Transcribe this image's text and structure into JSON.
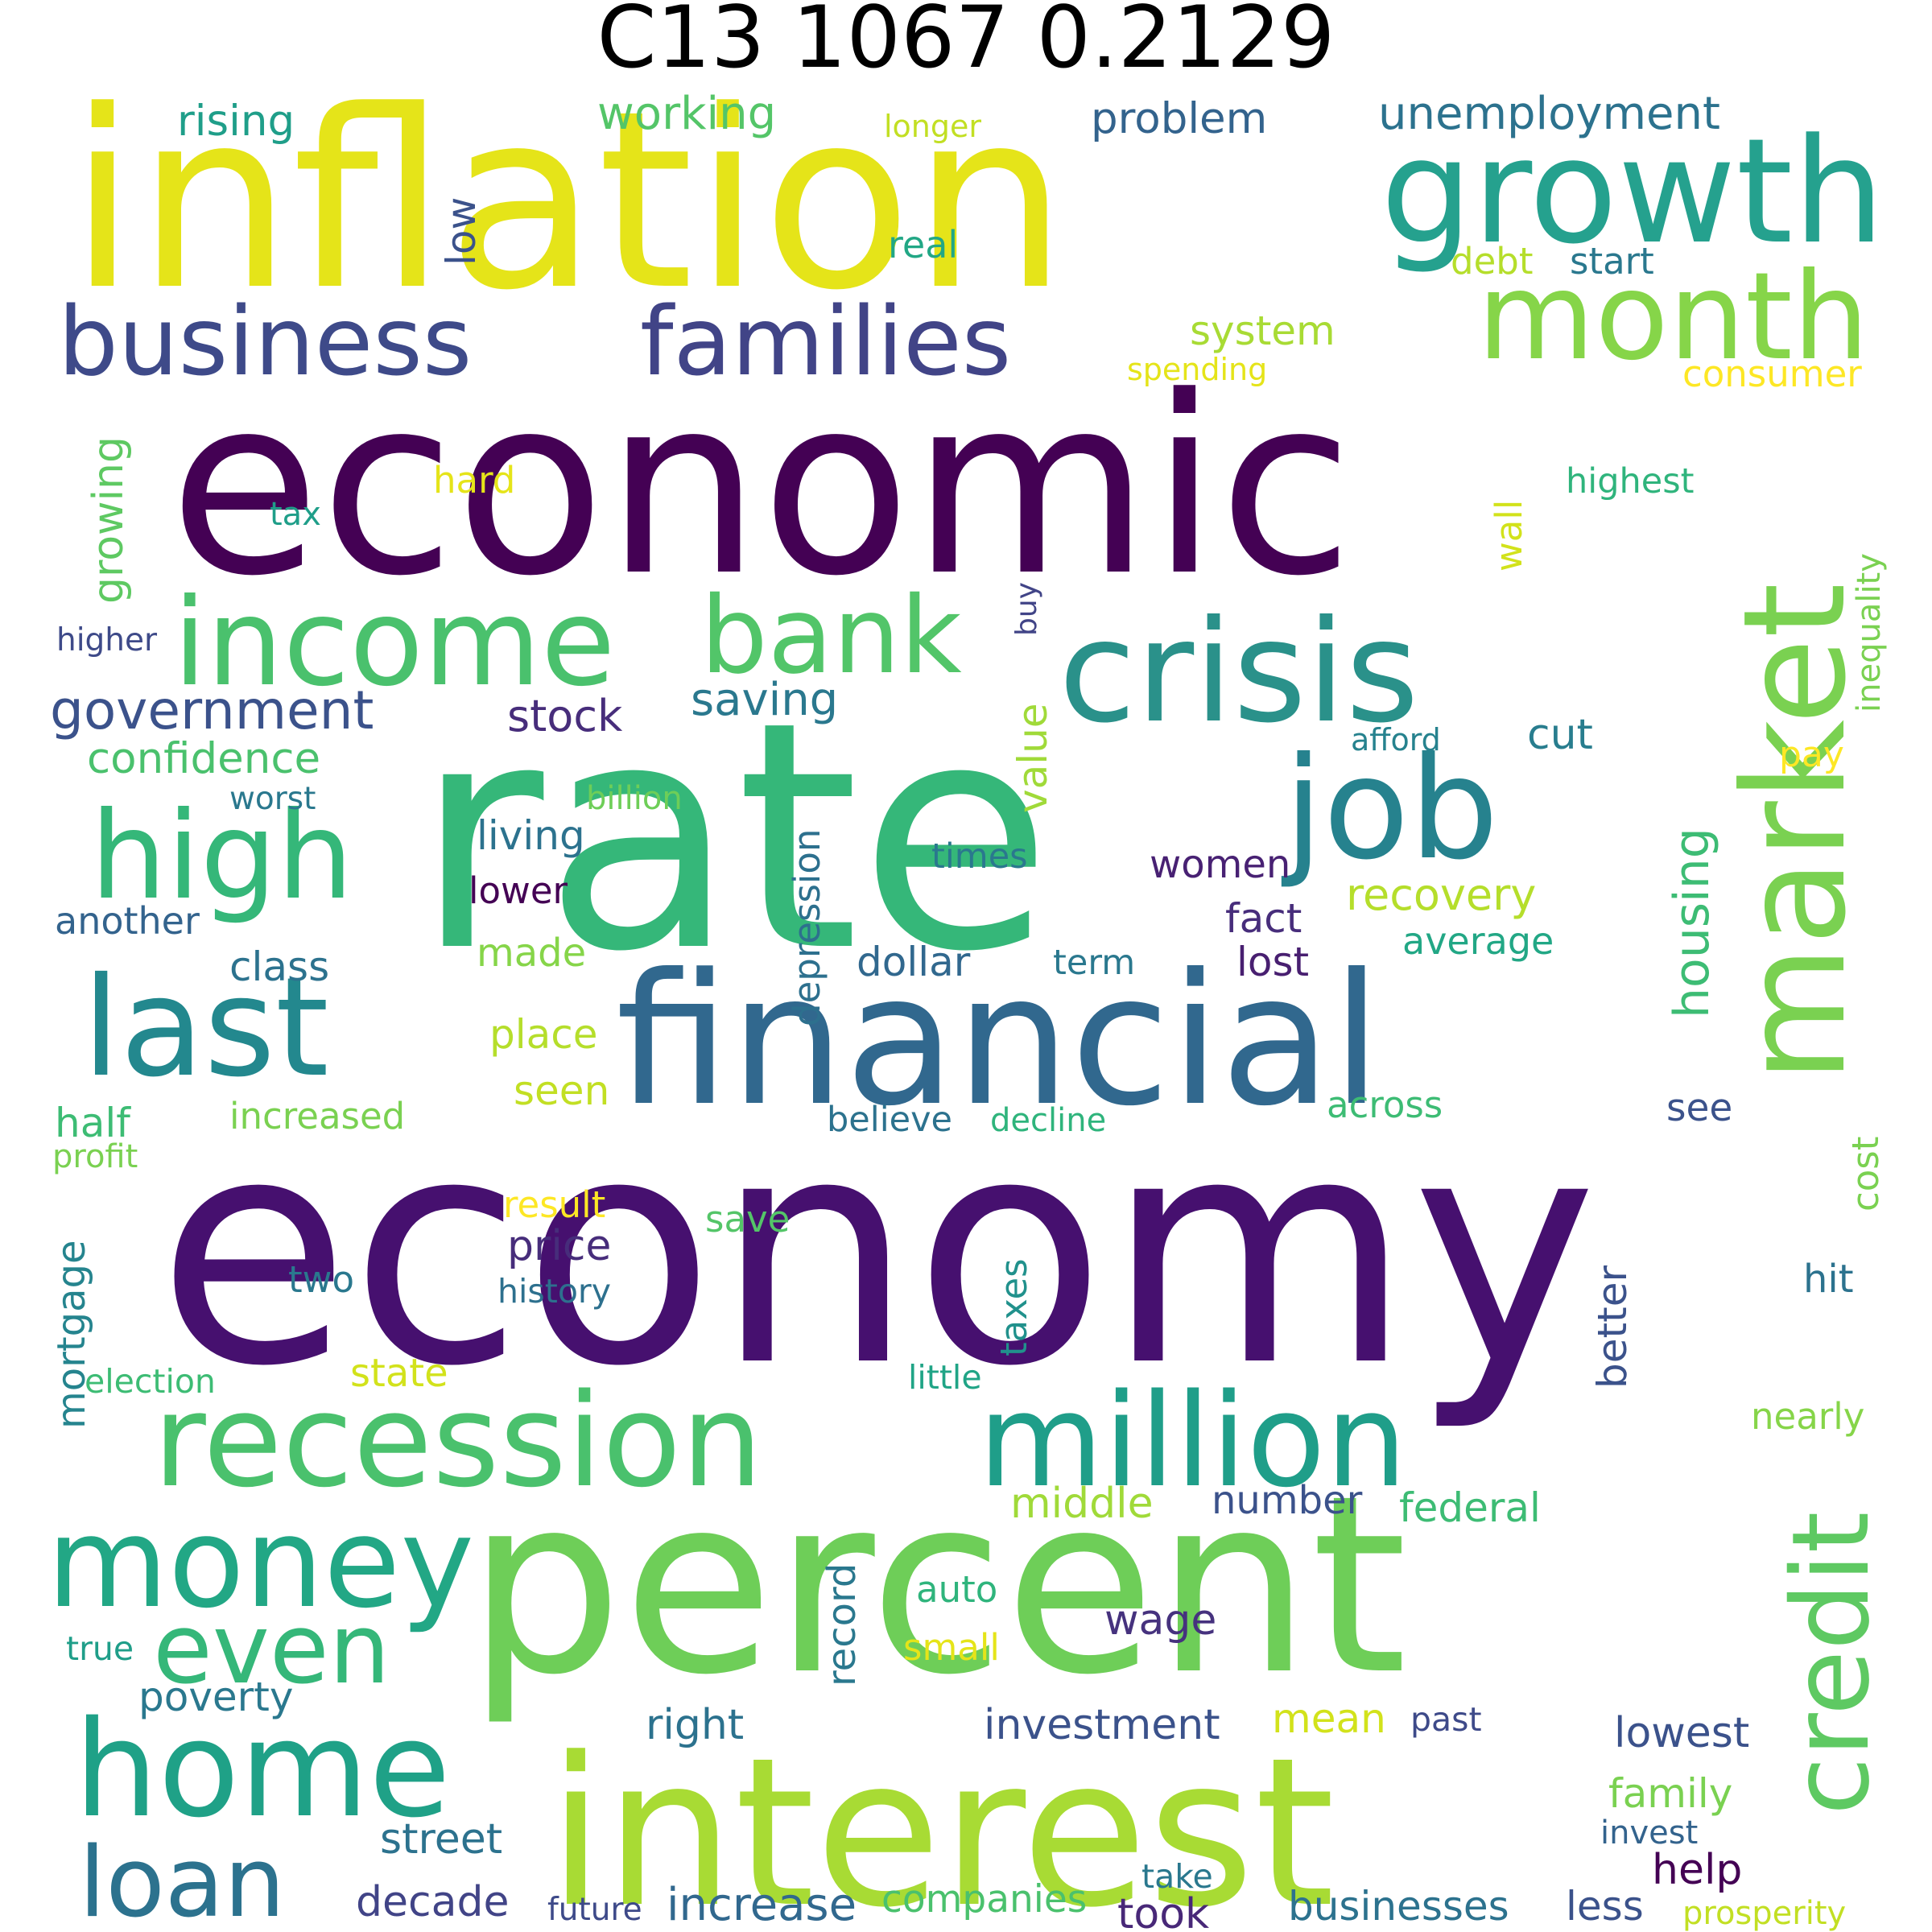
{
  "title": "C13 1067 0.2129",
  "palette": {
    "dark_purple": "#440154",
    "indigo": "#46327e",
    "blue": "#365c8d",
    "teal_blue": "#277f8e",
    "teal": "#1fa187",
    "green": "#4ac16d",
    "light_green": "#a0da39",
    "yellow": "#fde725"
  },
  "words": [
    {
      "text": "inflation",
      "color": "#e5e419"
    },
    {
      "text": "economic",
      "color": "#440154"
    },
    {
      "text": "rate",
      "color": "#35b779"
    },
    {
      "text": "economy",
      "color": "#46106f"
    },
    {
      "text": "percent",
      "color": "#6ece58"
    },
    {
      "text": "interest",
      "color": "#a8db34"
    },
    {
      "text": "financial",
      "color": "#31688e"
    },
    {
      "text": "growth",
      "color": "#25a18e"
    },
    {
      "text": "market",
      "color": "#7ad151"
    },
    {
      "text": "crisis",
      "color": "#2a918a"
    },
    {
      "text": "month",
      "color": "#86d549"
    },
    {
      "text": "business",
      "color": "#3e4a89"
    },
    {
      "text": "families",
      "color": "#414487"
    },
    {
      "text": "income",
      "color": "#4ac16d"
    },
    {
      "text": "bank",
      "color": "#52c569"
    },
    {
      "text": "job",
      "color": "#26828e"
    },
    {
      "text": "high",
      "color": "#35b779"
    },
    {
      "text": "last",
      "color": "#23888e"
    },
    {
      "text": "recession",
      "color": "#4ac16d"
    },
    {
      "text": "million",
      "color": "#1f9e89"
    },
    {
      "text": "money",
      "color": "#22a785"
    },
    {
      "text": "credit",
      "color": "#5ec962"
    },
    {
      "text": "home",
      "color": "#1fa187"
    },
    {
      "text": "even",
      "color": "#35b779"
    },
    {
      "text": "loan",
      "color": "#2c728e"
    },
    {
      "text": "government",
      "color": "#3b528b"
    },
    {
      "text": "stock",
      "color": "#472d7b"
    },
    {
      "text": "saving",
      "color": "#2a788e"
    },
    {
      "text": "confidence",
      "color": "#4ac16d"
    },
    {
      "text": "rising",
      "color": "#1f9e89"
    },
    {
      "text": "working",
      "color": "#54c568"
    },
    {
      "text": "longer",
      "color": "#c2df23"
    },
    {
      "text": "problem",
      "color": "#33638d"
    },
    {
      "text": "unemployment",
      "color": "#2c728e"
    },
    {
      "text": "low",
      "color": "#3b528b"
    },
    {
      "text": "real",
      "color": "#22a785"
    },
    {
      "text": "debt",
      "color": "#b5de2b"
    },
    {
      "text": "start",
      "color": "#2a788e"
    },
    {
      "text": "system",
      "color": "#a8db34"
    },
    {
      "text": "spending",
      "color": "#e5e419"
    },
    {
      "text": "consumer",
      "color": "#fde725"
    },
    {
      "text": "growing",
      "color": "#5ec962"
    },
    {
      "text": "hard",
      "color": "#e5e419"
    },
    {
      "text": "tax",
      "color": "#1f9e89"
    },
    {
      "text": "highest",
      "color": "#2fb47c"
    },
    {
      "text": "wall",
      "color": "#d2e21b"
    },
    {
      "text": "inequality",
      "color": "#7ad151"
    },
    {
      "text": "higher",
      "color": "#3e4a89"
    },
    {
      "text": "buy",
      "color": "#414487"
    },
    {
      "text": "afford",
      "color": "#26828e"
    },
    {
      "text": "cut",
      "color": "#287d8e"
    },
    {
      "text": "pay",
      "color": "#fde725"
    },
    {
      "text": "worst",
      "color": "#2a788e"
    },
    {
      "text": "billion",
      "color": "#6ece58"
    },
    {
      "text": "value",
      "color": "#a0da39"
    },
    {
      "text": "depression",
      "color": "#2d708e"
    },
    {
      "text": "housing",
      "color": "#3dbc74"
    },
    {
      "text": "living",
      "color": "#2c728e"
    },
    {
      "text": "times",
      "color": "#2a788e"
    },
    {
      "text": "women",
      "color": "#482173"
    },
    {
      "text": "another",
      "color": "#33638d"
    },
    {
      "text": "lower",
      "color": "#440154"
    },
    {
      "text": "recovery",
      "color": "#b5de2b"
    },
    {
      "text": "fact",
      "color": "#472d7b"
    },
    {
      "text": "class",
      "color": "#2c728e"
    },
    {
      "text": "made",
      "color": "#86d549"
    },
    {
      "text": "dollar",
      "color": "#31688e"
    },
    {
      "text": "term",
      "color": "#2a788e"
    },
    {
      "text": "lost",
      "color": "#481f70"
    },
    {
      "text": "average",
      "color": "#22a785"
    },
    {
      "text": "place",
      "color": "#b5de2b"
    },
    {
      "text": "seen",
      "color": "#c2df23"
    },
    {
      "text": "half",
      "color": "#3dbc74"
    },
    {
      "text": "increased",
      "color": "#7ad151"
    },
    {
      "text": "believe",
      "color": "#2c728e"
    },
    {
      "text": "decline",
      "color": "#2fb47c"
    },
    {
      "text": "across",
      "color": "#3dbc74"
    },
    {
      "text": "see",
      "color": "#3b528b"
    },
    {
      "text": "profit",
      "color": "#7ad151"
    },
    {
      "text": "cost",
      "color": "#7ad151"
    },
    {
      "text": "result",
      "color": "#fde725"
    },
    {
      "text": "save",
      "color": "#54c568"
    },
    {
      "text": "mortgage",
      "color": "#25848e"
    },
    {
      "text": "price",
      "color": "#472d7b"
    },
    {
      "text": "two",
      "color": "#2a788e"
    },
    {
      "text": "history",
      "color": "#2d708e"
    },
    {
      "text": "taxes",
      "color": "#21918c"
    },
    {
      "text": "better",
      "color": "#3b528b"
    },
    {
      "text": "hit",
      "color": "#2c728e"
    },
    {
      "text": "election",
      "color": "#3dbc74"
    },
    {
      "text": "state",
      "color": "#d2e21b"
    },
    {
      "text": "little",
      "color": "#20a486"
    },
    {
      "text": "nearly",
      "color": "#86d549"
    },
    {
      "text": "middle",
      "color": "#a0da39"
    },
    {
      "text": "number",
      "color": "#3b528b"
    },
    {
      "text": "federal",
      "color": "#3dbc74"
    },
    {
      "text": "record",
      "color": "#2a788e"
    },
    {
      "text": "auto",
      "color": "#2fb47c"
    },
    {
      "text": "wage",
      "color": "#46327e"
    },
    {
      "text": "true",
      "color": "#1f9e89"
    },
    {
      "text": "small",
      "color": "#e5e419"
    },
    {
      "text": "poverty",
      "color": "#2a788e"
    },
    {
      "text": "right",
      "color": "#2c728e"
    },
    {
      "text": "investment",
      "color": "#3b528b"
    },
    {
      "text": "mean",
      "color": "#d2e21b"
    },
    {
      "text": "past",
      "color": "#3e4a89"
    },
    {
      "text": "lowest",
      "color": "#3b528b"
    },
    {
      "text": "family",
      "color": "#7ad151"
    },
    {
      "text": "street",
      "color": "#2c728e"
    },
    {
      "text": "help",
      "color": "#440154"
    },
    {
      "text": "invest",
      "color": "#33638d"
    },
    {
      "text": "decade",
      "color": "#414487"
    },
    {
      "text": "future",
      "color": "#3e4a89"
    },
    {
      "text": "increase",
      "color": "#31688e"
    },
    {
      "text": "companies",
      "color": "#4ac16d"
    },
    {
      "text": "take",
      "color": "#2a788e"
    },
    {
      "text": "took",
      "color": "#482878"
    },
    {
      "text": "businesses",
      "color": "#2c728e"
    },
    {
      "text": "less",
      "color": "#3b528b"
    },
    {
      "text": "prosperity",
      "color": "#c2df23"
    }
  ]
}
